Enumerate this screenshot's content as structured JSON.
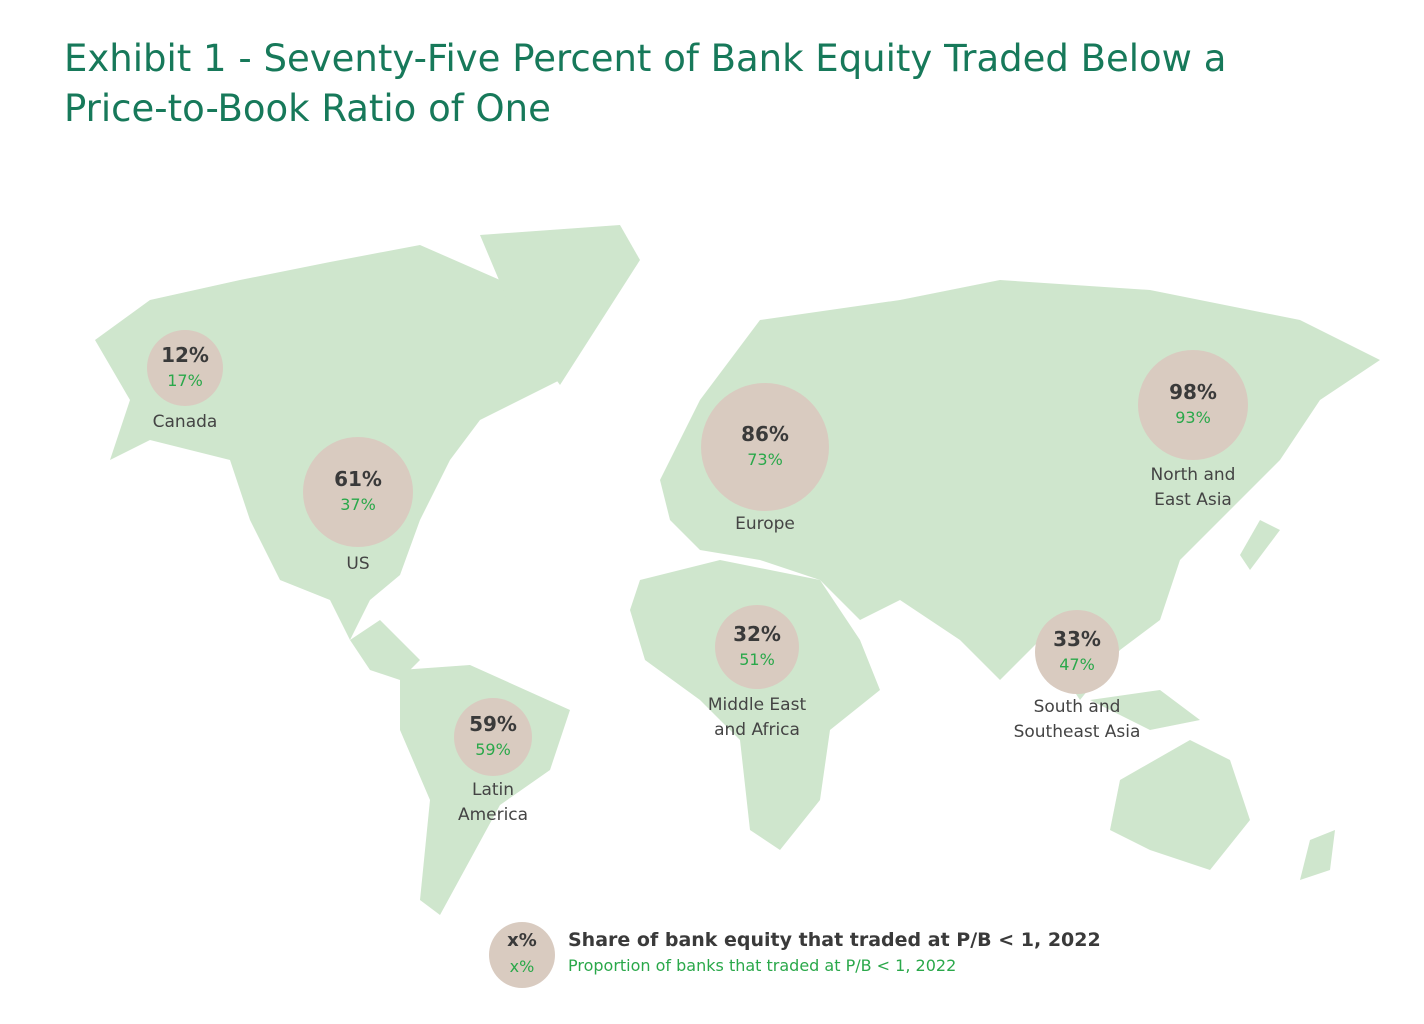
{
  "chart_data": {
    "type": "bubble-map",
    "title": "Exhibit 1 - Seventy-Five Percent of Bank Equity Traded Below a Price-to-Book Ratio of One",
    "categories": [
      "Canada",
      "US",
      "Europe",
      "North and East Asia",
      "Middle East and Africa",
      "South and Southeast Asia",
      "Latin America"
    ],
    "bubble_color": "#d9cbc0",
    "land_color": "#cfe6cd",
    "series": [
      {
        "name": "Share of bank equity that traded at P/B < 1, 2022",
        "color": "#3a3a3a",
        "values": [
          12,
          61,
          86,
          98,
          32,
          33,
          59
        ],
        "value_labels": [
          "12%",
          "61%",
          "86%",
          "98%",
          "32%",
          "33%",
          "59%"
        ],
        "legend_symbol": "x%"
      },
      {
        "name": "Proportion of banks that traded at P/B < 1, 2022",
        "color": "#2aa84a",
        "values": [
          17,
          37,
          73,
          93,
          51,
          47,
          59
        ],
        "value_labels": [
          "17%",
          "37%",
          "73%",
          "93%",
          "51%",
          "47%",
          "59%"
        ],
        "legend_symbol": "x%"
      }
    ]
  }
}
